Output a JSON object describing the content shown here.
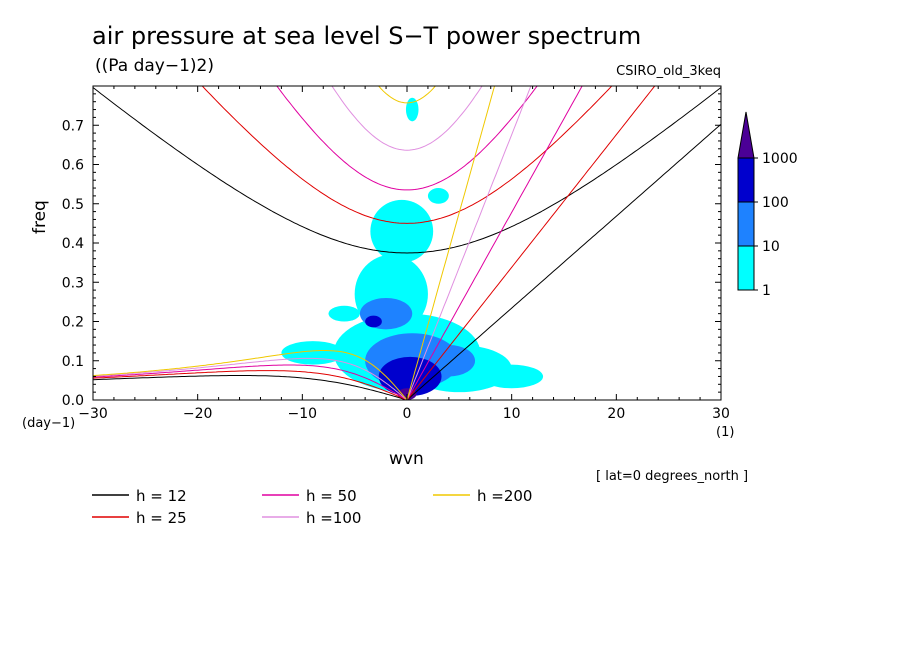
{
  "chart_data": {
    "type": "heatmap",
    "title": "air pressure at sea level S−T power spectrum",
    "subtitle": "((Pa day−1)2)",
    "model": "CSIRO_old_3keq",
    "xlabel": "wvn",
    "ylabel": "freq",
    "x_unit_label": "(1)",
    "y_unit_label": "(day−1)",
    "annotation": "[ lat=0 degrees_north ]",
    "xlim": [
      -30,
      30
    ],
    "ylim": [
      0,
      0.8
    ],
    "x_ticks": [
      -30,
      -20,
      -10,
      0,
      10,
      20,
      30
    ],
    "x_tick_labels": [
      "−30",
      "−20",
      "−10",
      "0",
      "10",
      "20",
      "30"
    ],
    "y_ticks": [
      0,
      0.1,
      0.2,
      0.3,
      0.4,
      0.5,
      0.6,
      0.7
    ],
    "y_tick_labels": [
      "0.0",
      "0.1",
      "0.2",
      "0.3",
      "0.4",
      "0.5",
      "0.6",
      "0.7"
    ],
    "colorbar": {
      "levels": [
        1,
        10,
        100,
        1000
      ],
      "labels": [
        "1",
        "10",
        "100",
        "1000"
      ],
      "colors": [
        "#00ffff",
        "#1e82ff",
        "#0000cd",
        "#4b0096"
      ]
    },
    "blobs": [
      {
        "level": 1,
        "cx": 0,
        "cy": 0.12,
        "rx": 7,
        "ry": 0.1
      },
      {
        "level": 1,
        "cx": -1.5,
        "cy": 0.27,
        "rx": 3.5,
        "ry": 0.1
      },
      {
        "level": 1,
        "cx": -0.5,
        "cy": 0.43,
        "rx": 3,
        "ry": 0.08
      },
      {
        "level": 1,
        "cx": 5,
        "cy": 0.08,
        "rx": 5,
        "ry": 0.06
      },
      {
        "level": 1,
        "cx": 10,
        "cy": 0.06,
        "rx": 3,
        "ry": 0.03
      },
      {
        "level": 1,
        "cx": -9,
        "cy": 0.12,
        "rx": 3,
        "ry": 0.03
      },
      {
        "level": 1,
        "cx": -6,
        "cy": 0.22,
        "rx": 1.5,
        "ry": 0.02
      },
      {
        "level": 1,
        "cx": 3,
        "cy": 0.52,
        "rx": 1,
        "ry": 0.02
      },
      {
        "level": 1,
        "cx": 0.5,
        "cy": 0.74,
        "rx": 0.6,
        "ry": 0.03
      },
      {
        "level": 10,
        "cx": 0.5,
        "cy": 0.1,
        "rx": 4.5,
        "ry": 0.07
      },
      {
        "level": 10,
        "cx": -2,
        "cy": 0.22,
        "rx": 2.5,
        "ry": 0.04
      },
      {
        "level": 10,
        "cx": 4,
        "cy": 0.1,
        "rx": 2.5,
        "ry": 0.04
      },
      {
        "level": 100,
        "cx": 0.3,
        "cy": 0.06,
        "rx": 3,
        "ry": 0.05
      },
      {
        "level": 100,
        "cx": -3.2,
        "cy": 0.2,
        "rx": 0.8,
        "ry": 0.015
      },
      {
        "level": 1000,
        "cx": 0,
        "cy": 0.015,
        "rx": 0.9,
        "ry": 0.015
      }
    ],
    "dispersion_legend": [
      {
        "label": "h = 12",
        "color": "#000000"
      },
      {
        "label": "h = 25",
        "color": "#e00000"
      },
      {
        "label": "h = 50",
        "color": "#e000a0"
      },
      {
        "label": "h =100",
        "color": "#e090e0"
      },
      {
        "label": "h =200",
        "color": "#f0c800"
      }
    ]
  }
}
